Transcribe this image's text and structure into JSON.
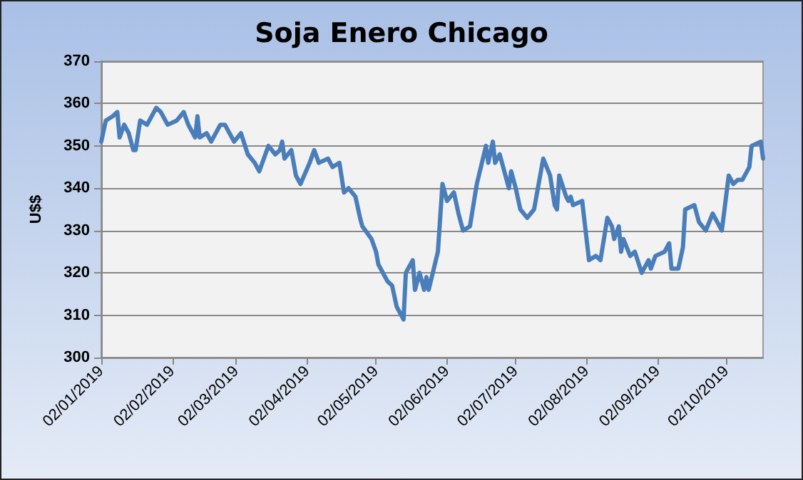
{
  "chart_data": {
    "type": "line",
    "title": "Soja Enero Chicago",
    "ylabel": "U$$",
    "x": [
      "2019-01-02",
      "2019-01-04",
      "2019-01-07",
      "2019-01-09",
      "2019-01-10",
      "2019-01-12",
      "2019-01-14",
      "2019-01-16",
      "2019-01-17",
      "2019-01-19",
      "2019-01-22",
      "2019-01-26",
      "2019-01-28",
      "2019-01-31",
      "2019-02-04",
      "2019-02-07",
      "2019-02-09",
      "2019-02-12",
      "2019-02-13",
      "2019-02-14",
      "2019-02-17",
      "2019-02-19",
      "2019-02-23",
      "2019-02-25",
      "2019-03-01",
      "2019-03-04",
      "2019-03-07",
      "2019-03-10",
      "2019-03-12",
      "2019-03-14",
      "2019-03-16",
      "2019-03-19",
      "2019-03-21",
      "2019-03-22",
      "2019-03-23",
      "2019-03-26",
      "2019-03-28",
      "2019-03-30",
      "2019-04-03",
      "2019-04-05",
      "2019-04-07",
      "2019-04-11",
      "2019-04-13",
      "2019-04-16",
      "2019-04-18",
      "2019-04-20",
      "2019-04-23",
      "2019-04-25",
      "2019-04-26",
      "2019-04-30",
      "2019-05-02",
      "2019-05-03",
      "2019-05-07",
      "2019-05-09",
      "2019-05-11",
      "2019-05-14",
      "2019-05-15",
      "2019-05-18",
      "2019-05-19",
      "2019-05-21",
      "2019-05-23",
      "2019-05-24",
      "2019-05-25",
      "2019-05-29",
      "2019-05-31",
      "2019-06-02",
      "2019-06-05",
      "2019-06-07",
      "2019-06-09",
      "2019-06-12",
      "2019-06-15",
      "2019-06-19",
      "2019-06-20",
      "2019-06-22",
      "2019-06-23",
      "2019-06-25",
      "2019-06-29",
      "2019-06-30",
      "2019-07-02",
      "2019-07-04",
      "2019-07-07",
      "2019-07-10",
      "2019-07-14",
      "2019-07-17",
      "2019-07-19",
      "2019-07-20",
      "2019-07-21",
      "2019-07-24",
      "2019-07-25",
      "2019-07-26",
      "2019-07-27",
      "2019-07-31",
      "2019-08-03",
      "2019-08-06",
      "2019-08-08",
      "2019-08-11",
      "2019-08-13",
      "2019-08-14",
      "2019-08-16",
      "2019-08-17",
      "2019-08-18",
      "2019-08-21",
      "2019-08-23",
      "2019-08-26",
      "2019-08-29",
      "2019-08-30",
      "2019-09-01",
      "2019-09-05",
      "2019-09-07",
      "2019-09-08",
      "2019-09-11",
      "2019-09-13",
      "2019-09-14",
      "2019-09-18",
      "2019-09-20",
      "2019-09-23",
      "2019-09-26",
      "2019-09-30",
      "2019-10-03",
      "2019-10-05",
      "2019-10-07",
      "2019-10-09",
      "2019-10-12",
      "2019-10-13",
      "2019-10-17",
      "2019-10-18"
    ],
    "series": [
      {
        "color": "#4a7ebb",
        "values": [
          351,
          356,
          357,
          358,
          352,
          355,
          353,
          349,
          349,
          356,
          355,
          359,
          358,
          355,
          356,
          358,
          355,
          352,
          357,
          352,
          353,
          351,
          355,
          355,
          351,
          353,
          348,
          346,
          344,
          347,
          350,
          348,
          349,
          351,
          347,
          349,
          343,
          341,
          346,
          349,
          346,
          347,
          345,
          346,
          339,
          340,
          338,
          333,
          331,
          328,
          325,
          322,
          318,
          317,
          312,
          309,
          320,
          323,
          316,
          320,
          316,
          319,
          316,
          325,
          341,
          337,
          339,
          334,
          330,
          331,
          341,
          350,
          346,
          351,
          346,
          348,
          340,
          344,
          340,
          335,
          333,
          335,
          347,
          343,
          336,
          335,
          343,
          338,
          337,
          338,
          336,
          337,
          323,
          324,
          323,
          333,
          331,
          328,
          331,
          325,
          328,
          324,
          325,
          320,
          323,
          321,
          324,
          325,
          327,
          321,
          321,
          326,
          335,
          336,
          332,
          330,
          334,
          330,
          343,
          341,
          342,
          342,
          345,
          350,
          351,
          347
        ]
      }
    ],
    "xlim": [
      "2019-01-02",
      "2019-10-18"
    ],
    "xticks": [
      {
        "value": "2019-01-02",
        "label": "02/01/2019"
      },
      {
        "value": "2019-02-02",
        "label": "02/02/2019"
      },
      {
        "value": "2019-03-02",
        "label": "02/03/2019"
      },
      {
        "value": "2019-04-02",
        "label": "02/04/2019"
      },
      {
        "value": "2019-05-02",
        "label": "02/05/2019"
      },
      {
        "value": "2019-06-02",
        "label": "02/06/2019"
      },
      {
        "value": "2019-07-02",
        "label": "02/07/2019"
      },
      {
        "value": "2019-08-02",
        "label": "02/08/2019"
      },
      {
        "value": "2019-09-02",
        "label": "02/09/2019"
      },
      {
        "value": "2019-10-02",
        "label": "02/10/2019"
      }
    ],
    "ylim": [
      300,
      370
    ],
    "yticks": [
      300,
      310,
      320,
      330,
      340,
      350,
      360,
      370
    ],
    "grid": "y",
    "marker": "none",
    "line_style": "solid"
  }
}
